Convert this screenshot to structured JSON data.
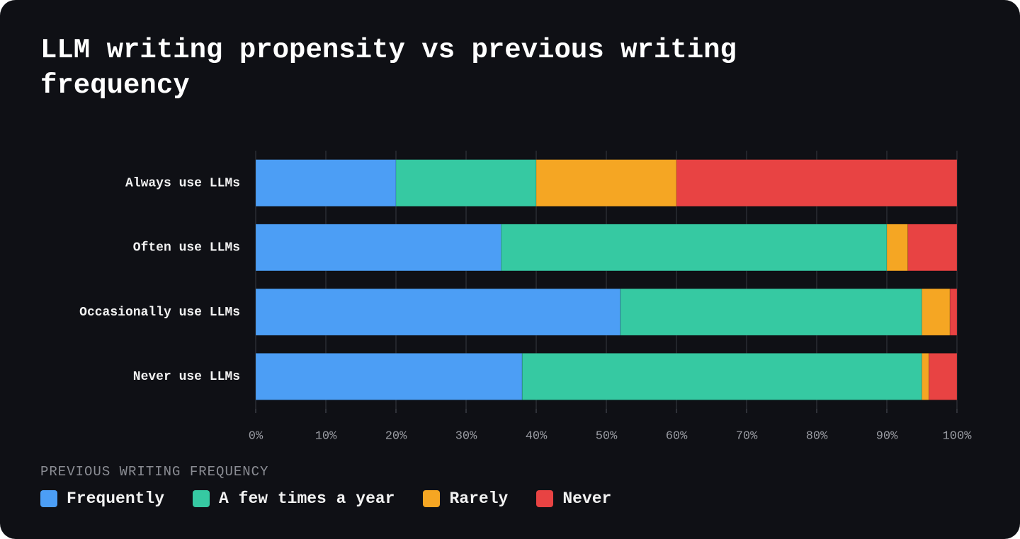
{
  "chart_data": {
    "type": "stacked_barh",
    "title": "LLM writing propensity vs previous writing frequency",
    "legend_title": "PREVIOUS WRITING FREQUENCY",
    "categories": [
      "Always use LLMs",
      "Often use LLMs",
      "Occasionally use LLMs",
      "Never use LLMs"
    ],
    "series": [
      {
        "name": "Frequently",
        "color": "#4c9ef5",
        "values": [
          20,
          35,
          52,
          38
        ]
      },
      {
        "name": "A few times a year",
        "color": "#36c9a2",
        "values": [
          20,
          55,
          43,
          57
        ]
      },
      {
        "name": "Rarely",
        "color": "#f5a623",
        "values": [
          20,
          3,
          4,
          1
        ]
      },
      {
        "name": "Never",
        "color": "#e84343",
        "values": [
          40,
          7,
          1,
          4
        ]
      }
    ],
    "xlim": [
      0,
      100
    ],
    "xticks": [
      {
        "value": 0,
        "label": "0%"
      },
      {
        "value": 10,
        "label": "10%"
      },
      {
        "value": 20,
        "label": "20%"
      },
      {
        "value": 30,
        "label": "30%"
      },
      {
        "value": 40,
        "label": "40%"
      },
      {
        "value": 50,
        "label": "50%"
      },
      {
        "value": 60,
        "label": "60%"
      },
      {
        "value": 70,
        "label": "70%"
      },
      {
        "value": 80,
        "label": "80%"
      },
      {
        "value": 90,
        "label": "90%"
      },
      {
        "value": 100,
        "label": "100%"
      }
    ],
    "grid": true,
    "legend_position": "bottom"
  }
}
